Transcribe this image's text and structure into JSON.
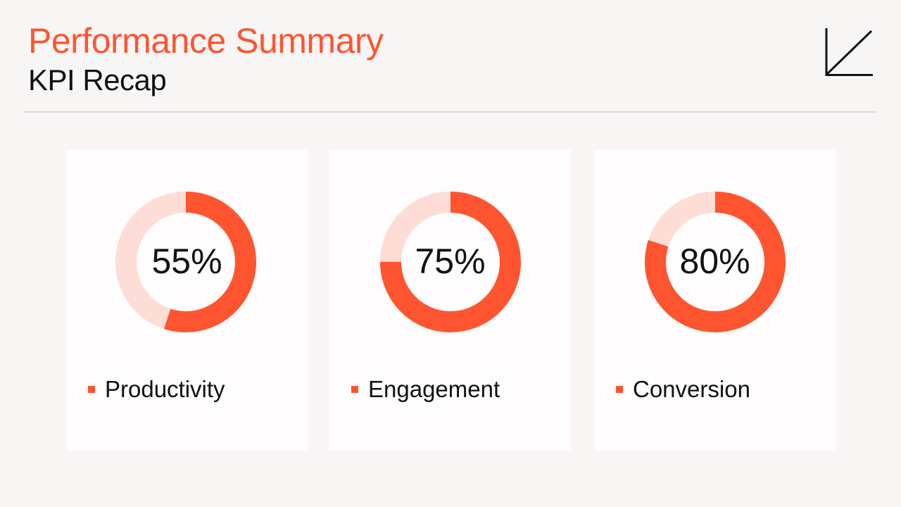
{
  "header": {
    "title": "Performance Summary",
    "subtitle": "KPI Recap",
    "logo_icon": "chart-axis-arrow-icon"
  },
  "colors": {
    "accent": "#fe5530",
    "track": "#fdddd5",
    "background": "#f8f5f5",
    "card": "#fefcfc"
  },
  "cards": [
    {
      "label": "Productivity",
      "value_text": "55%",
      "value": 55
    },
    {
      "label": "Engagement",
      "value_text": "75%",
      "value": 75
    },
    {
      "label": "Conversion",
      "value_text": "80%",
      "value": 80
    }
  ],
  "chart_data": {
    "type": "pie",
    "title": "Performance Summary",
    "subtitle": "KPI Recap",
    "categories": [
      "Productivity",
      "Engagement",
      "Conversion"
    ],
    "values": [
      55,
      75,
      80
    ],
    "unit": "%",
    "max": 100,
    "style": "donut",
    "legend_position": "below each chart"
  }
}
